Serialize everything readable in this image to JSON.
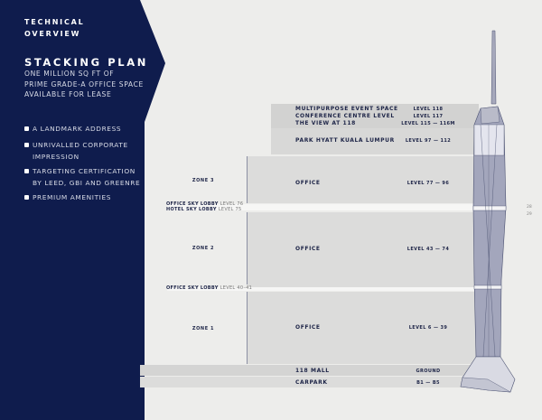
{
  "sidebar": {
    "section": [
      "TECHNICAL",
      "OVERVIEW"
    ],
    "title": "STACKING PLAN",
    "subtitle": [
      "ONE MILLION SQ FT OF",
      "PRIME GRADE-A OFFICE SPACE",
      "AVAILABLE FOR LEASE"
    ],
    "bullets": [
      [
        "A LANDMARK ADDRESS"
      ],
      [
        "UNRIVALLED CORPORATE",
        "IMPRESSION"
      ],
      [
        "TARGETING CERTIFICATION",
        "BY LEED, GBI AND GREENRE"
      ],
      [
        "PREMIUM AMENITIES"
      ]
    ]
  },
  "stack": {
    "top": [
      {
        "name": "MULTIPURPOSE EVENT SPACE",
        "level": "LEVEL 118"
      },
      {
        "name": "CONFERENCE CENTRE LEVEL",
        "level": "LEVEL 117"
      },
      {
        "name": "THE VIEW AT 118",
        "level": "LEVEL 115 — 116M"
      },
      {
        "name": "PARK HYATT KUALA LUMPUR",
        "level": "LEVEL 97 — 112"
      }
    ],
    "zones": [
      {
        "zone": "ZONE 3",
        "name": "OFFICE",
        "level": "LEVEL 77 — 96"
      },
      {
        "zone": "ZONE 2",
        "name": "OFFICE",
        "level": "LEVEL 43 — 74"
      },
      {
        "zone": "ZONE 1",
        "name": "OFFICE",
        "level": "LEVEL 6 — 39"
      }
    ],
    "lobbies": [
      {
        "name": "OFFICE SKY LOBBY",
        "level": "LEVEL 76"
      },
      {
        "name": "HOTEL SKY LOBBY",
        "level": "LEVEL 75"
      },
      {
        "name": "OFFICE SKY LOBBY",
        "level": "LEVEL 40–41"
      }
    ],
    "bottom": [
      {
        "name": "118 MALL",
        "level": "GROUND"
      },
      {
        "name": "CARPARK",
        "level": "B1 — B5"
      }
    ]
  },
  "page_numbers": [
    "28",
    "29"
  ],
  "colors": {
    "navy": "#0f1c4d",
    "band": "#dcdcdb",
    "text": "#1d2447"
  }
}
